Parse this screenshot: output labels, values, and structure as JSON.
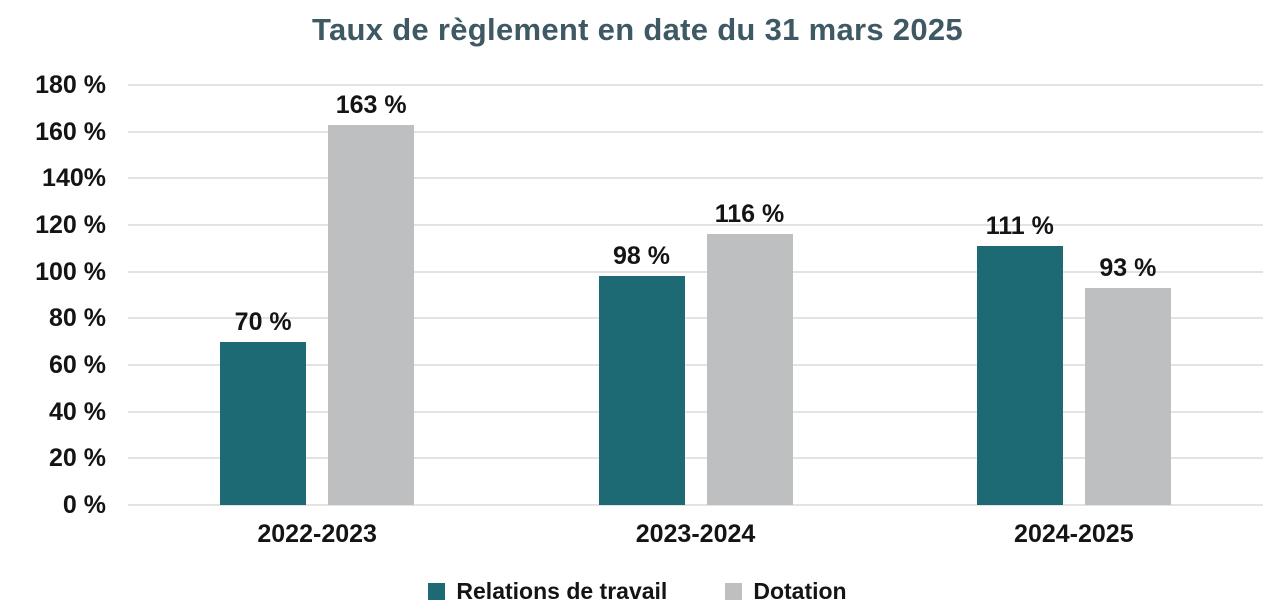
{
  "chart_data": {
    "type": "bar",
    "title": "Taux de règlement en date du 31 mars 2025",
    "categories": [
      "2022-2023",
      "2023-2024",
      "2024-2025"
    ],
    "series": [
      {
        "name": "Relations de travail",
        "color": "#1D6A74",
        "values": [
          70,
          98,
          111
        ],
        "value_labels": [
          "70 %",
          "98 %",
          "111 %"
        ]
      },
      {
        "name": "Dotation",
        "color": "#BEBFC1",
        "values": [
          163,
          116,
          93
        ],
        "value_labels": [
          "163 %",
          "116 %",
          "93 %"
        ]
      }
    ],
    "ylim": [
      0,
      180
    ],
    "y_ticks": [
      {
        "value": 0,
        "label": "0 %"
      },
      {
        "value": 20,
        "label": "20 %"
      },
      {
        "value": 40,
        "label": "40 %"
      },
      {
        "value": 60,
        "label": "60 %"
      },
      {
        "value": 80,
        "label": "80 %"
      },
      {
        "value": 100,
        "label": "100 %"
      },
      {
        "value": 120,
        "label": "120 %"
      },
      {
        "value": 140,
        "label": "140%"
      },
      {
        "value": 160,
        "label": "160 %"
      },
      {
        "value": 180,
        "label": "180 %"
      }
    ],
    "grid": true,
    "legend_position": "bottom",
    "colors": {
      "title": "#3F5964",
      "axis_text": "#141414",
      "gridline": "#E3E3E3",
      "background": "#FFFFFF"
    }
  }
}
